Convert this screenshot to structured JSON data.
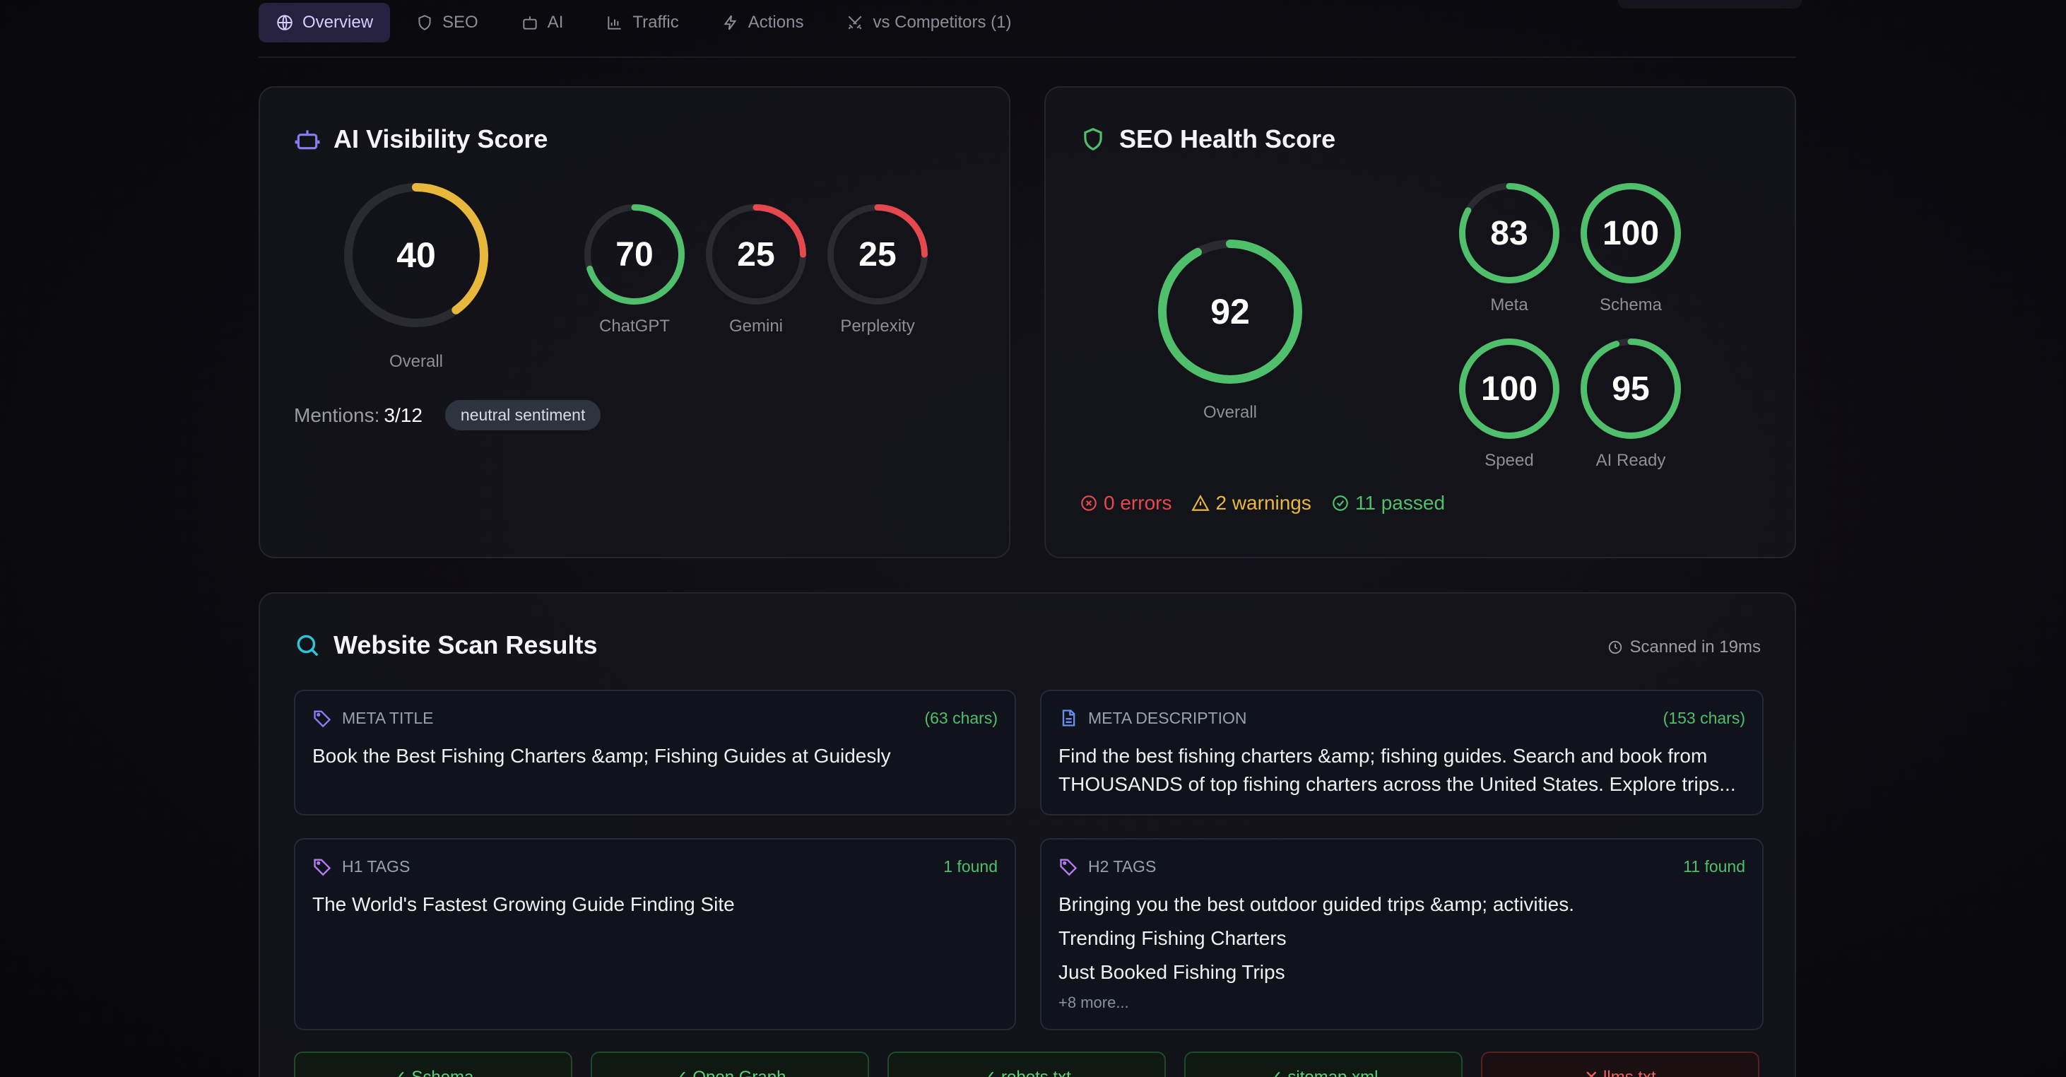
{
  "tabs": [
    {
      "label": "Overview",
      "icon": "globe-icon",
      "active": true
    },
    {
      "label": "SEO",
      "icon": "shield-icon",
      "active": false
    },
    {
      "label": "AI",
      "icon": "robot-icon",
      "active": false
    },
    {
      "label": "Traffic",
      "icon": "bar-chart-icon",
      "active": false
    },
    {
      "label": "Actions",
      "icon": "bolt-icon",
      "active": false
    },
    {
      "label": "vs Competitors (1)",
      "icon": "swords-icon",
      "active": false
    }
  ],
  "ai_visibility": {
    "title": "AI Visibility Score",
    "overall": {
      "value": "40",
      "label": "Overall",
      "percent": 40,
      "color": "#e8b83c"
    },
    "engines": [
      {
        "value": "70",
        "label": "ChatGPT",
        "percent": 70,
        "color": "#4fbf6b"
      },
      {
        "value": "25",
        "label": "Gemini",
        "percent": 25,
        "color": "#e5484d"
      },
      {
        "value": "25",
        "label": "Perplexity",
        "percent": 25,
        "color": "#e5484d"
      }
    ],
    "mentions_label": "Mentions:",
    "mentions_value": "3/12",
    "sentiment": "neutral sentiment"
  },
  "seo_health": {
    "title": "SEO Health Score",
    "overall": {
      "value": "92",
      "label": "Overall",
      "percent": 92,
      "color": "#4fbf6b"
    },
    "metrics": [
      {
        "value": "83",
        "label": "Meta",
        "percent": 83,
        "color": "#4fbf6b"
      },
      {
        "value": "100",
        "label": "Schema",
        "percent": 100,
        "color": "#4fbf6b"
      },
      {
        "value": "100",
        "label": "Speed",
        "percent": 100,
        "color": "#4fbf6b"
      },
      {
        "value": "95",
        "label": "AI Ready",
        "percent": 95,
        "color": "#4fbf6b"
      }
    ],
    "errors": "0 errors",
    "warnings": "2 warnings",
    "passed": "11 passed"
  },
  "scan": {
    "title": "Website Scan Results",
    "scanned": "Scanned in 19ms",
    "meta_title": {
      "label": "META TITLE",
      "count": "(63 chars)",
      "text": "Book the Best Fishing Charters &amp; Fishing Guides at Guidesly"
    },
    "meta_description": {
      "label": "META DESCRIPTION",
      "count": "(153 chars)",
      "text": "Find the best fishing charters &amp; fishing guides. Search and book from THOUSANDS of top fishing charters across the United States. Explore trips..."
    },
    "h1": {
      "label": "H1 TAGS",
      "count": "1 found",
      "items": [
        "The World's Fastest Growing Guide Finding Site"
      ]
    },
    "h2": {
      "label": "H2 TAGS",
      "count": "11 found",
      "items": [
        "Bringing you the best outdoor guided trips &amp; activities.",
        "Trending Fishing Charters",
        "Just Booked Fishing Trips"
      ],
      "more": "+8 more..."
    },
    "checks": [
      {
        "label": "✓ Schema",
        "ok": true
      },
      {
        "label": "✓ Open Graph",
        "ok": true
      },
      {
        "label": "✓ robots.txt",
        "ok": true
      },
      {
        "label": "✓ sitemap.xml",
        "ok": true
      },
      {
        "label": "✕ llms.txt",
        "ok": false
      }
    ]
  },
  "colors": {
    "green": "#4fbf6b",
    "yellow": "#e8b83c",
    "red": "#e5484d",
    "accent": "#8b7cf6",
    "cyan": "#2ec5d8"
  }
}
